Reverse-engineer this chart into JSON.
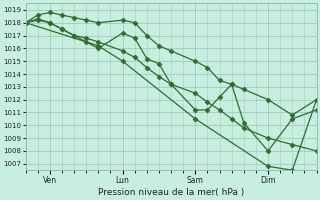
{
  "xlabel": "Pression niveau de la mer( hPa )",
  "bg_color": "#c8eee0",
  "grid_color": "#a0ccbb",
  "line_color": "#2d6e2d",
  "marker_color": "#2d6e2d",
  "ylim": [
    1006.5,
    1019.5
  ],
  "yticks": [
    1007,
    1008,
    1009,
    1010,
    1011,
    1012,
    1013,
    1014,
    1015,
    1016,
    1017,
    1018,
    1019
  ],
  "xlim": [
    0,
    96
  ],
  "day_ticks": [
    8,
    32,
    56,
    80
  ],
  "day_labels": [
    "Ven",
    "Lun",
    "Sam",
    "Dim"
  ],
  "minor_xtick_interval": 4,
  "series1_x": [
    0,
    4,
    8,
    12,
    16,
    20,
    24,
    32,
    36,
    40,
    44,
    48,
    56,
    60,
    64,
    68,
    72,
    80,
    88,
    96
  ],
  "series1_y": [
    1018.0,
    1018.6,
    1018.8,
    1018.6,
    1018.4,
    1018.2,
    1018.0,
    1018.2,
    1018.0,
    1017.0,
    1016.2,
    1015.8,
    1015.0,
    1014.5,
    1013.5,
    1013.2,
    1012.8,
    1012.0,
    1010.8,
    1012.0
  ],
  "series2_x": [
    0,
    4,
    8,
    12,
    16,
    20,
    24,
    32,
    36,
    40,
    44,
    48,
    56,
    60,
    64,
    68,
    72,
    80,
    88,
    96
  ],
  "series2_y": [
    1018.0,
    1018.2,
    1018.0,
    1017.5,
    1017.0,
    1016.5,
    1016.0,
    1017.2,
    1016.8,
    1015.2,
    1014.8,
    1013.2,
    1011.2,
    1011.2,
    1012.2,
    1013.2,
    1010.2,
    1008.0,
    1010.5,
    1011.2
  ],
  "series3_x": [
    0,
    24,
    32,
    56,
    80,
    88,
    96
  ],
  "series3_y": [
    1018.0,
    1016.2,
    1015.0,
    1010.5,
    1006.8,
    1006.5,
    1012.0
  ],
  "series4_x": [
    0,
    4,
    8,
    12,
    16,
    20,
    24,
    32,
    36,
    40,
    44,
    48,
    56,
    60,
    64,
    68,
    72,
    80,
    88,
    96
  ],
  "series4_y": [
    1018.0,
    1018.3,
    1018.0,
    1017.5,
    1017.0,
    1016.8,
    1016.5,
    1015.8,
    1015.3,
    1014.5,
    1013.8,
    1013.2,
    1012.5,
    1011.8,
    1011.2,
    1010.5,
    1009.8,
    1009.0,
    1008.5,
    1008.0
  ]
}
